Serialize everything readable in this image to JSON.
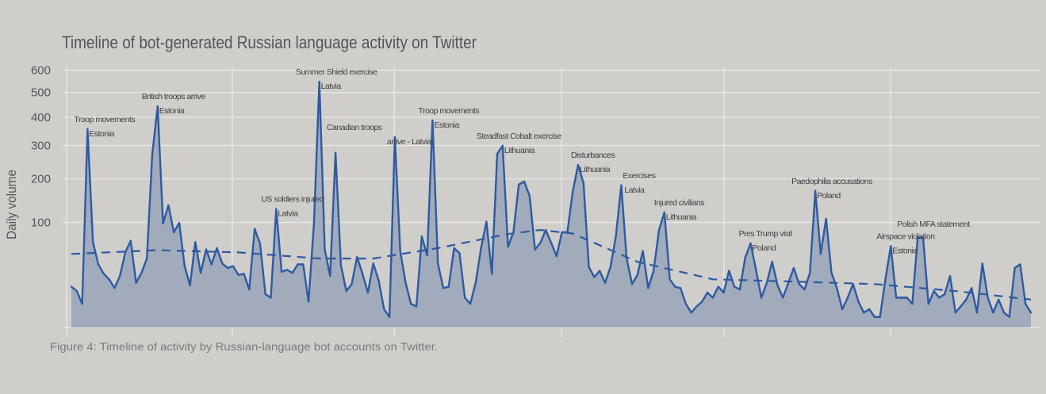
{
  "chart_data": {
    "type": "area",
    "title": "Timeline of bot-generated Russian language activity on Twitter",
    "ylabel": "Daily volume",
    "xlabel": "",
    "yscale": "sqrt",
    "ylim": [
      0,
      600
    ],
    "yticks": [
      600,
      500,
      400,
      300,
      200,
      100
    ],
    "yticks_labels": [
      "600",
      "500",
      "400",
      "300",
      "200",
      "100"
    ],
    "grid": true,
    "colors": {
      "background": "#cfceca",
      "grid": "#e9e9e6",
      "line": "#2f5aa0",
      "fill": "#a1abbc",
      "text": "#555555"
    },
    "series": [
      {
        "name": "Daily volume",
        "values": [
          15,
          12,
          5,
          356,
          66,
          36,
          26,
          21,
          14,
          24,
          51,
          68,
          18,
          27,
          43,
          271,
          443,
          98,
          135,
          82,
          99,
          34,
          16,
          66,
          27,
          55,
          36,
          57,
          37,
          32,
          34,
          25,
          26,
          13,
          88,
          64,
          10,
          8,
          127,
          28,
          30,
          27,
          36,
          36,
          6,
          98,
          547,
          55,
          24,
          276,
          35,
          12,
          17,
          45,
          26,
          11,
          37,
          20,
          3,
          1,
          328,
          53,
          18,
          5,
          4,
          75,
          47,
          388,
          37,
          14,
          15,
          57,
          50,
          8,
          5,
          18,
          57,
          101,
          26,
          273,
          299,
          59,
          82,
          185,
          193,
          157,
          55,
          65,
          86,
          65,
          46,
          82,
          82,
          167,
          239,
          189,
          33,
          23,
          29,
          18,
          33,
          75,
          183,
          43,
          17,
          25,
          53,
          14,
          29,
          86,
          120,
          21,
          15,
          14,
          5,
          2,
          4,
          6,
          11,
          8,
          15,
          11,
          29,
          15,
          13,
          44,
          64,
          30,
          8,
          18,
          39,
          16,
          8,
          18,
          32,
          17,
          13,
          27,
          169,
          49,
          107,
          27,
          14,
          3,
          8,
          17,
          6,
          2,
          3,
          1,
          1,
          21,
          60,
          8,
          8,
          8,
          5,
          73,
          73,
          5,
          12,
          8,
          10,
          24,
          2,
          4,
          7,
          14,
          2,
          37,
          8,
          2,
          7,
          2,
          1,
          32,
          36,
          5,
          2
        ]
      },
      {
        "name": "Trend",
        "style": "dashed",
        "points": [
          [
            0,
            49
          ],
          [
            16,
            54
          ],
          [
            31,
            51
          ],
          [
            46,
            43
          ],
          [
            56,
            43
          ],
          [
            68,
            57
          ],
          [
            81,
            79
          ],
          [
            87,
            86
          ],
          [
            93,
            80
          ],
          [
            105,
            39
          ],
          [
            119,
            21
          ],
          [
            134,
            19
          ],
          [
            149,
            17
          ],
          [
            164,
            12
          ],
          [
            178,
            7
          ]
        ]
      }
    ],
    "annotations": [
      {
        "index": 3,
        "lines": [
          "Troop movements",
          "Estonia"
        ]
      },
      {
        "index": 16,
        "lines": [
          "British troops arrive",
          "Estonia"
        ]
      },
      {
        "index": 38,
        "lines": [
          "US soldiers injured",
          "Latvia"
        ]
      },
      {
        "index": 46,
        "lines": [
          "Summer Shield exercise",
          "Latvia"
        ]
      },
      {
        "index": 60,
        "lines": [
          "Canadian troops",
          "arrive - Latvia"
        ]
      },
      {
        "index": 67,
        "lines": [
          "Troop movements",
          "Estonia"
        ]
      },
      {
        "index": 80,
        "lines": [
          "Steadfast Cobalt exercise",
          "Lithuania"
        ]
      },
      {
        "index": 94,
        "lines": [
          "Disturbances",
          "Lithuania"
        ]
      },
      {
        "index": 102,
        "lines": [
          "Exercises",
          "Latvia"
        ]
      },
      {
        "index": 110,
        "lines": [
          "Injured civilians",
          "Lithuania"
        ]
      },
      {
        "index": 126,
        "lines": [
          "Pres Trump visit",
          "Poland"
        ]
      },
      {
        "index": 138,
        "lines": [
          "Paedophilia accusations",
          "Poland"
        ]
      },
      {
        "index": 152,
        "lines": [
          "Airspace violation",
          "Estonia"
        ]
      },
      {
        "index": 157,
        "lines": [
          "Polish MFA statement"
        ]
      }
    ]
  },
  "caption": "Figure 4: Timeline of activity by Russian-language bot accounts on Twitter."
}
